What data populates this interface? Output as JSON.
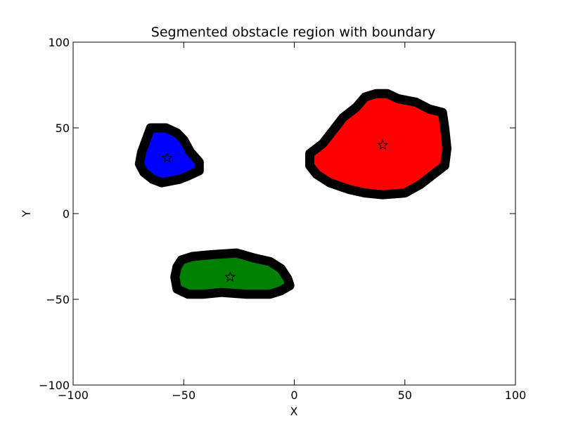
{
  "chart_data": {
    "type": "scatter",
    "title": "Segmented obstacle region with boundary",
    "xlabel": "X",
    "ylabel": "Y",
    "xlim": [
      -100,
      100
    ],
    "ylim": [
      -100,
      100
    ],
    "xticks": [
      -100,
      -50,
      0,
      50,
      100
    ],
    "yticks": [
      -100,
      -50,
      0,
      50,
      100
    ],
    "xtick_labels": [
      "−100",
      "−50",
      "0",
      "50",
      "100"
    ],
    "ytick_labels": [
      "−100",
      "−50",
      "0",
      "50",
      "100"
    ],
    "grid": false,
    "legend": "none",
    "boundary_color": "#000000",
    "regions": [
      {
        "color": "#ff0000",
        "centroid": [
          40,
          40
        ],
        "boundary": [
          [
            37,
            70
          ],
          [
            42,
            70
          ],
          [
            47,
            67
          ],
          [
            55,
            65
          ],
          [
            61,
            61
          ],
          [
            67,
            59
          ],
          [
            68,
            50
          ],
          [
            69,
            38
          ],
          [
            68,
            28
          ],
          [
            63,
            23
          ],
          [
            57,
            17
          ],
          [
            50,
            12
          ],
          [
            40,
            11
          ],
          [
            32,
            12
          ],
          [
            25,
            14
          ],
          [
            16,
            18
          ],
          [
            10,
            23
          ],
          [
            7,
            28
          ],
          [
            7,
            35
          ],
          [
            13,
            41
          ],
          [
            16,
            46
          ],
          [
            19,
            51
          ],
          [
            22,
            56
          ],
          [
            28,
            62
          ],
          [
            32,
            68
          ]
        ]
      },
      {
        "color": "#0000ff",
        "centroid": [
          -57.5,
          32.5
        ],
        "boundary": [
          [
            -65,
            50
          ],
          [
            -58,
            50
          ],
          [
            -53,
            47
          ],
          [
            -50,
            43
          ],
          [
            -47,
            36
          ],
          [
            -43,
            30
          ],
          [
            -43,
            25
          ],
          [
            -48,
            22
          ],
          [
            -52,
            20
          ],
          [
            -60,
            18
          ],
          [
            -64,
            20
          ],
          [
            -68,
            24
          ],
          [
            -70,
            29
          ],
          [
            -69,
            36
          ],
          [
            -67,
            43
          ]
        ]
      },
      {
        "color": "#008000",
        "centroid": [
          -29,
          -37
        ],
        "boundary": [
          [
            -51,
            -27
          ],
          [
            -46,
            -25
          ],
          [
            -38,
            -24
          ],
          [
            -26,
            -23
          ],
          [
            -18,
            -26
          ],
          [
            -11,
            -28
          ],
          [
            -6,
            -32
          ],
          [
            -3,
            -38
          ],
          [
            -2,
            -42
          ],
          [
            -6,
            -45
          ],
          [
            -11,
            -47
          ],
          [
            -22,
            -47
          ],
          [
            -33,
            -46
          ],
          [
            -41,
            -47
          ],
          [
            -48,
            -47
          ],
          [
            -53,
            -44
          ],
          [
            -54,
            -37
          ],
          [
            -53,
            -31
          ]
        ]
      }
    ]
  }
}
